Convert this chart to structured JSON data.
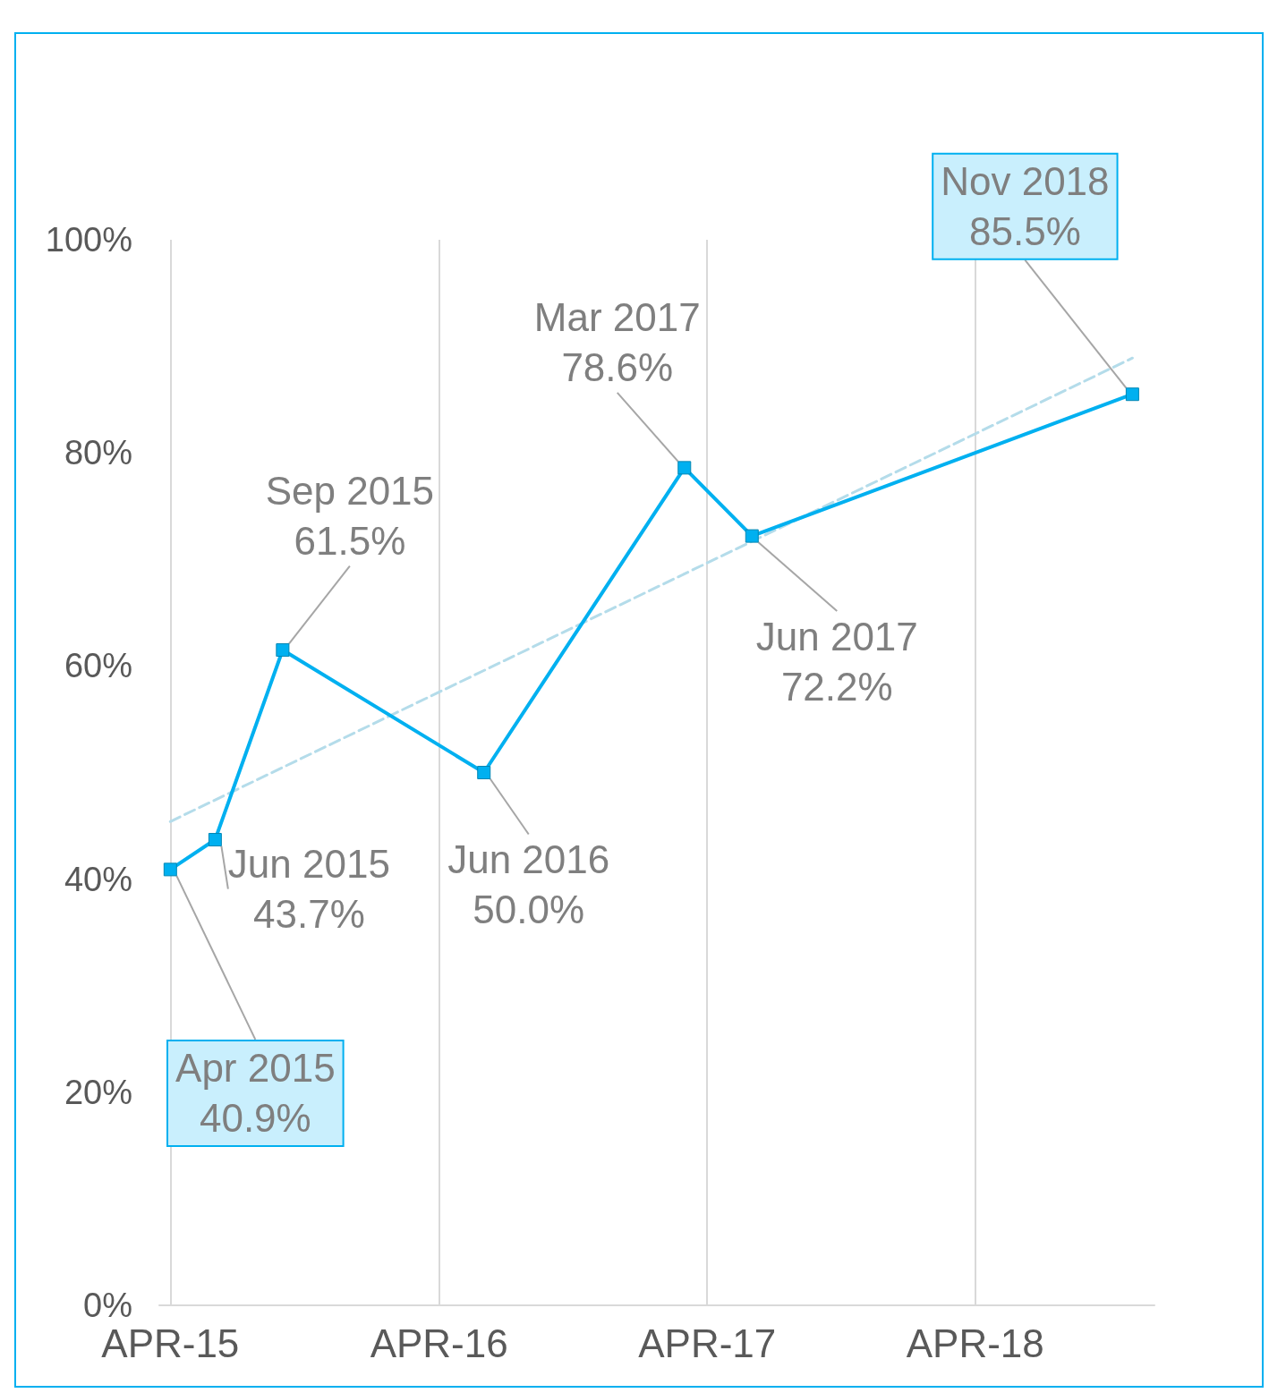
{
  "chart_data": {
    "type": "line",
    "x": [
      "2015-04",
      "2015-06",
      "2015-09",
      "2016-06",
      "2017-03",
      "2017-06",
      "2018-11"
    ],
    "series": [
      {
        "color": "#00b0f0",
        "values": [
          40.9,
          43.7,
          61.5,
          50.0,
          78.6,
          72.2,
          85.5
        ],
        "value_labels": [
          "Apr 2015\n40.9%",
          "Jun 2015\n43.7%",
          "Sep 2015\n61.5%",
          "Jun 2016\n50.0%",
          "Mar 2017\n78.6%",
          "Jun 2017\n72.2%",
          "Nov 2018\n85.5%"
        ]
      },
      {
        "type": "line",
        "color": "#b4dcea",
        "line_style": "dashed",
        "marker": "none",
        "x": [
          "2015-04",
          "2018-11"
        ],
        "values": [
          45.4,
          88.9
        ]
      }
    ],
    "marker": "square",
    "line_style": "solid",
    "grid": "x",
    "xlim": [
      "2015-03-17",
      "2018-12-01"
    ],
    "xticks": [
      {
        "value": "2015-04",
        "label": "APR-15"
      },
      {
        "value": "2016-04",
        "label": "APR-16"
      },
      {
        "value": "2017-04",
        "label": "APR-17"
      },
      {
        "value": "2018-04",
        "label": "APR-18"
      }
    ],
    "ylim": [
      0,
      100
    ],
    "yticks": [
      {
        "value": 0,
        "label": "0%"
      },
      {
        "value": 20,
        "label": "20%"
      },
      {
        "value": 40,
        "label": "40%"
      },
      {
        "value": 60,
        "label": "60%"
      },
      {
        "value": 80,
        "label": "80%"
      },
      {
        "value": 100,
        "label": "100%"
      }
    ]
  }
}
